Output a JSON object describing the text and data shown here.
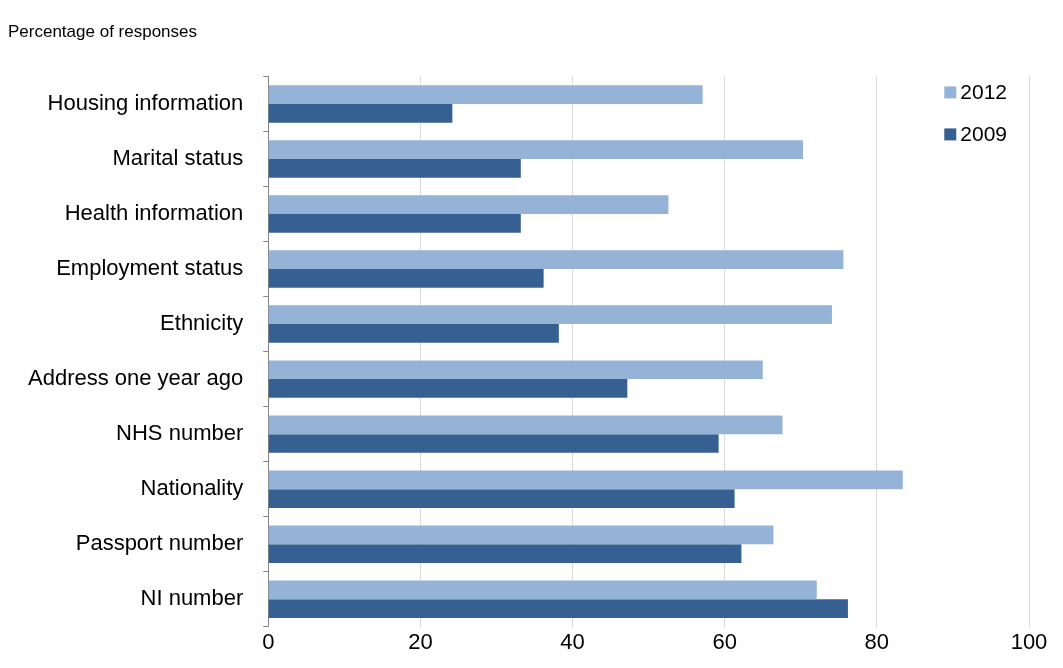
{
  "chart_data": {
    "type": "bar",
    "orientation": "horizontal",
    "title": "Percentage of responses",
    "categories": [
      "Housing information",
      "Marital status",
      "Health information",
      "Employment status",
      "Ethnicity",
      "Address one year ago",
      "NHS number",
      "Nationality",
      "Passport number",
      "NI number"
    ],
    "series": [
      {
        "name": "2012",
        "color": "#95b3d7",
        "values": [
          57.1,
          70.3,
          52.6,
          75.6,
          74.1,
          65.0,
          67.6,
          83.4,
          66.4,
          72.1
        ]
      },
      {
        "name": "2009",
        "color": "#366092",
        "values": [
          24.2,
          33.2,
          33.2,
          36.2,
          38.2,
          47.2,
          59.2,
          61.3,
          62.2,
          76.2
        ]
      }
    ],
    "xlim": [
      0,
      100
    ],
    "xticks": [
      0,
      20,
      40,
      60,
      80,
      100
    ],
    "grid": "x",
    "legend": "top right"
  }
}
